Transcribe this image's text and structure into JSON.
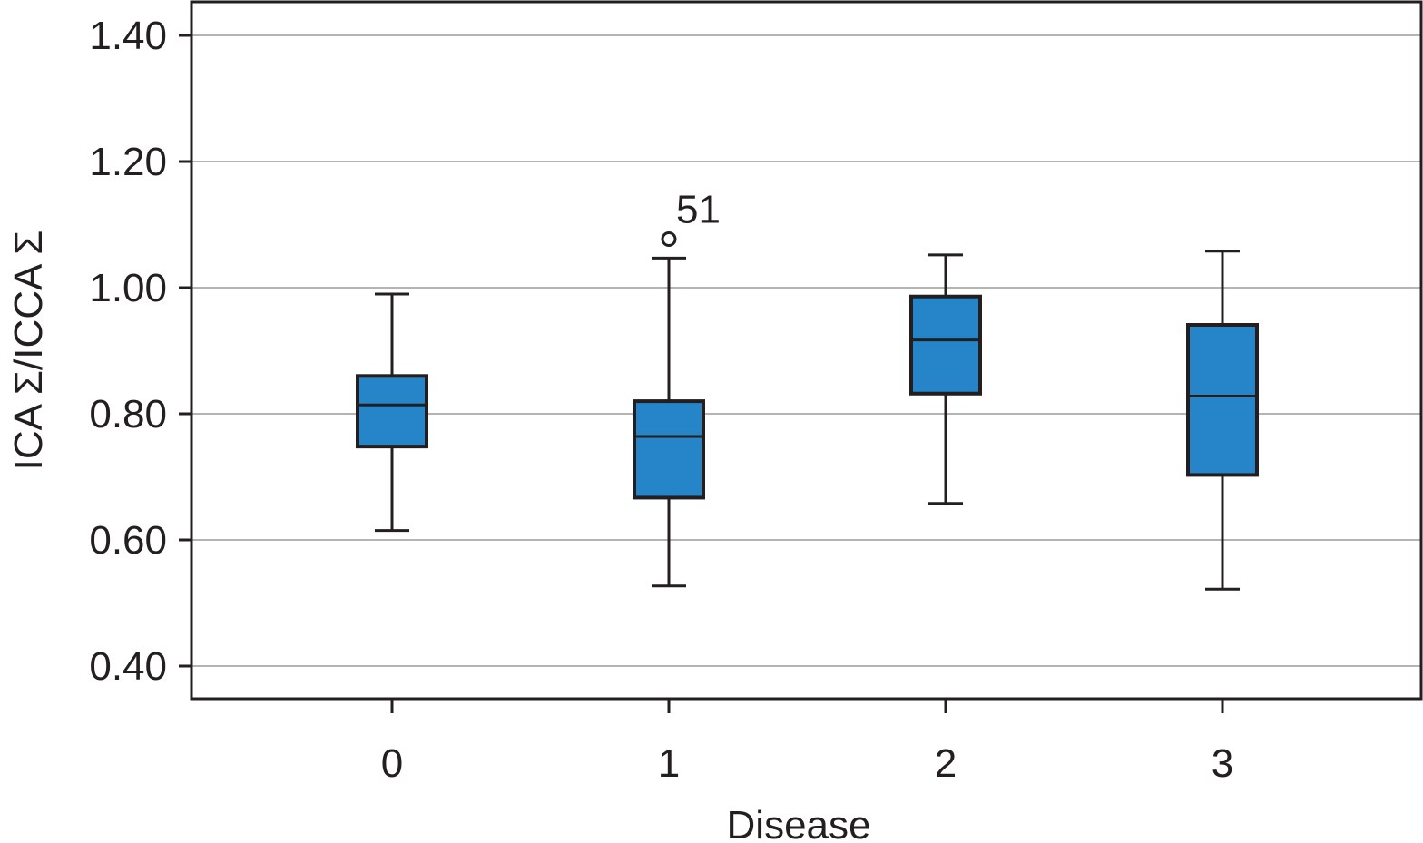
{
  "chart_data": {
    "type": "box",
    "xlabel": "Disease",
    "ylabel": "ICA Σ/ICCA Σ",
    "ylim": [
      0.35,
      1.45
    ],
    "yticks": [
      "1.40",
      "1.20",
      "1.00",
      "0.80",
      "0.60",
      "0.40"
    ],
    "grid": "horizontal",
    "colors": {
      "box_fill": "#2585c8",
      "stroke": "#231f20",
      "grid": "#b4b4b4"
    },
    "categories": [
      "0",
      "1",
      "2",
      "3"
    ],
    "boxes": [
      {
        "category": "0",
        "whisker_low": 0.615,
        "q1": 0.748,
        "median": 0.814,
        "q3": 0.86,
        "whisker_high": 0.99
      },
      {
        "category": "1",
        "whisker_low": 0.527,
        "q1": 0.667,
        "median": 0.764,
        "q3": 0.82,
        "whisker_high": 1.047
      },
      {
        "category": "2",
        "whisker_low": 0.658,
        "q1": 0.832,
        "median": 0.917,
        "q3": 0.986,
        "whisker_high": 1.052
      },
      {
        "category": "3",
        "whisker_low": 0.522,
        "q1": 0.703,
        "median": 0.828,
        "q3": 0.941,
        "whisker_high": 1.058
      }
    ],
    "outliers": [
      {
        "category": "1",
        "value": 1.077,
        "label": "51"
      }
    ]
  }
}
